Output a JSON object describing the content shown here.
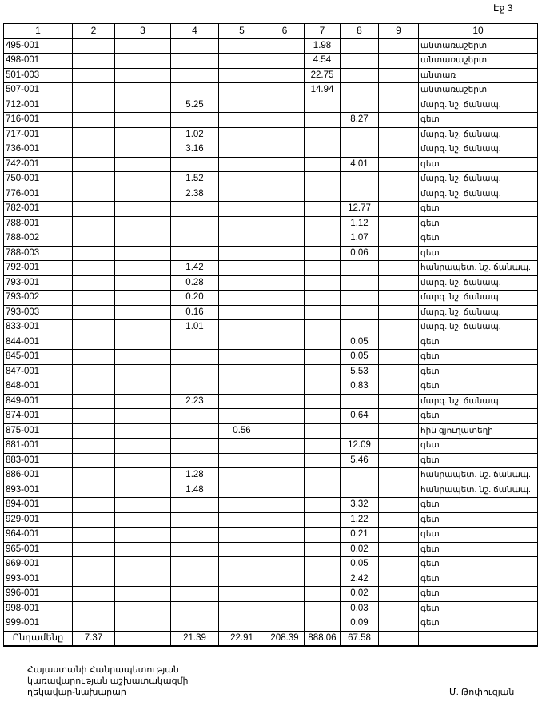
{
  "page_label": "Էջ 3",
  "headers": [
    "1",
    "2",
    "3",
    "4",
    "5",
    "6",
    "7",
    "8",
    "9",
    "10"
  ],
  "rows": [
    [
      "495-001",
      "",
      "",
      "",
      "",
      "",
      "1.98",
      "",
      "",
      "անտառաշերտ"
    ],
    [
      "498-001",
      "",
      "",
      "",
      "",
      "",
      "4.54",
      "",
      "",
      "անտառաշերտ"
    ],
    [
      "501-003",
      "",
      "",
      "",
      "",
      "",
      "22.75",
      "",
      "",
      "անտառ"
    ],
    [
      "507-001",
      "",
      "",
      "",
      "",
      "",
      "14.94",
      "",
      "",
      "անտառաշերտ"
    ],
    [
      "712-001",
      "",
      "",
      "5.25",
      "",
      "",
      "",
      "",
      "",
      "մարզ. նշ. ճանապ."
    ],
    [
      "716-001",
      "",
      "",
      "",
      "",
      "",
      "",
      "8.27",
      "",
      "գետ"
    ],
    [
      "717-001",
      "",
      "",
      "1.02",
      "",
      "",
      "",
      "",
      "",
      "մարզ. նշ. ճանապ."
    ],
    [
      "736-001",
      "",
      "",
      "3.16",
      "",
      "",
      "",
      "",
      "",
      "մարզ. նշ. ճանապ."
    ],
    [
      "742-001",
      "",
      "",
      "",
      "",
      "",
      "",
      "4.01",
      "",
      "գետ"
    ],
    [
      "750-001",
      "",
      "",
      "1.52",
      "",
      "",
      "",
      "",
      "",
      "մարզ. նշ. ճանապ."
    ],
    [
      "776-001",
      "",
      "",
      "2.38",
      "",
      "",
      "",
      "",
      "",
      "մարզ. նշ. ճանապ."
    ],
    [
      "782-001",
      "",
      "",
      "",
      "",
      "",
      "",
      "12.77",
      "",
      "գետ"
    ],
    [
      "788-001",
      "",
      "",
      "",
      "",
      "",
      "",
      "1.12",
      "",
      "գետ"
    ],
    [
      "788-002",
      "",
      "",
      "",
      "",
      "",
      "",
      "1.07",
      "",
      "գետ"
    ],
    [
      "788-003",
      "",
      "",
      "",
      "",
      "",
      "",
      "0.06",
      "",
      "գետ"
    ],
    [
      "792-001",
      "",
      "",
      "1.42",
      "",
      "",
      "",
      "",
      "",
      "հանրապետ. նշ. ճանապ."
    ],
    [
      "793-001",
      "",
      "",
      "0.28",
      "",
      "",
      "",
      "",
      "",
      "մարզ. նշ. ճանապ."
    ],
    [
      "793-002",
      "",
      "",
      "0.20",
      "",
      "",
      "",
      "",
      "",
      "մարզ. նշ. ճանապ."
    ],
    [
      "793-003",
      "",
      "",
      "0.16",
      "",
      "",
      "",
      "",
      "",
      "մարզ. նշ. ճանապ."
    ],
    [
      "833-001",
      "",
      "",
      "1.01",
      "",
      "",
      "",
      "",
      "",
      "մարզ. նշ. ճանապ."
    ],
    [
      "844-001",
      "",
      "",
      "",
      "",
      "",
      "",
      "0.05",
      "",
      "գետ"
    ],
    [
      "845-001",
      "",
      "",
      "",
      "",
      "",
      "",
      "0.05",
      "",
      "գետ"
    ],
    [
      "847-001",
      "",
      "",
      "",
      "",
      "",
      "",
      "5.53",
      "",
      "գետ"
    ],
    [
      "848-001",
      "",
      "",
      "",
      "",
      "",
      "",
      "0.83",
      "",
      "գետ"
    ],
    [
      "849-001",
      "",
      "",
      "2.23",
      "",
      "",
      "",
      "",
      "",
      "մարզ. նշ. ճանապ."
    ],
    [
      "874-001",
      "",
      "",
      "",
      "",
      "",
      "",
      "0.64",
      "",
      "գետ"
    ],
    [
      "875-001",
      "",
      "",
      "",
      "0.56",
      "",
      "",
      "",
      "",
      "հին գյուղատեղի"
    ],
    [
      "881-001",
      "",
      "",
      "",
      "",
      "",
      "",
      "12.09",
      "",
      "գետ"
    ],
    [
      "883-001",
      "",
      "",
      "",
      "",
      "",
      "",
      "5.46",
      "",
      "գետ"
    ],
    [
      "886-001",
      "",
      "",
      "1.28",
      "",
      "",
      "",
      "",
      "",
      "հանրապետ. նշ. ճանապ."
    ],
    [
      "893-001",
      "",
      "",
      "1.48",
      "",
      "",
      "",
      "",
      "",
      "հանրապետ. նշ. ճանապ."
    ],
    [
      "894-001",
      "",
      "",
      "",
      "",
      "",
      "",
      "3.32",
      "",
      "գետ"
    ],
    [
      "929-001",
      "",
      "",
      "",
      "",
      "",
      "",
      "1.22",
      "",
      "գետ"
    ],
    [
      "964-001",
      "",
      "",
      "",
      "",
      "",
      "",
      "0.21",
      "",
      "գետ"
    ],
    [
      "965-001",
      "",
      "",
      "",
      "",
      "",
      "",
      "0.02",
      "",
      "գետ"
    ],
    [
      "969-001",
      "",
      "",
      "",
      "",
      "",
      "",
      "0.05",
      "",
      "գետ"
    ],
    [
      "993-001",
      "",
      "",
      "",
      "",
      "",
      "",
      "2.42",
      "",
      "գետ"
    ],
    [
      "996-001",
      "",
      "",
      "",
      "",
      "",
      "",
      "0.02",
      "",
      "գետ"
    ],
    [
      "998-001",
      "",
      "",
      "",
      "",
      "",
      "",
      "0.03",
      "",
      "գետ"
    ],
    [
      "999-001",
      "",
      "",
      "",
      "",
      "",
      "",
      "0.09",
      "",
      "գետ"
    ]
  ],
  "total": [
    "Ընդամենը",
    "7.37",
    "",
    "21.39",
    "22.91",
    "208.39",
    "888.06",
    "67.58",
    "",
    ""
  ],
  "footer": {
    "line1": "Հայաստանի Հանրապետության",
    "line2": "կառավարության աշխատակազմի",
    "line3": "ղեկավար-նախարար",
    "signature": "Մ. Թոփուզյան"
  }
}
